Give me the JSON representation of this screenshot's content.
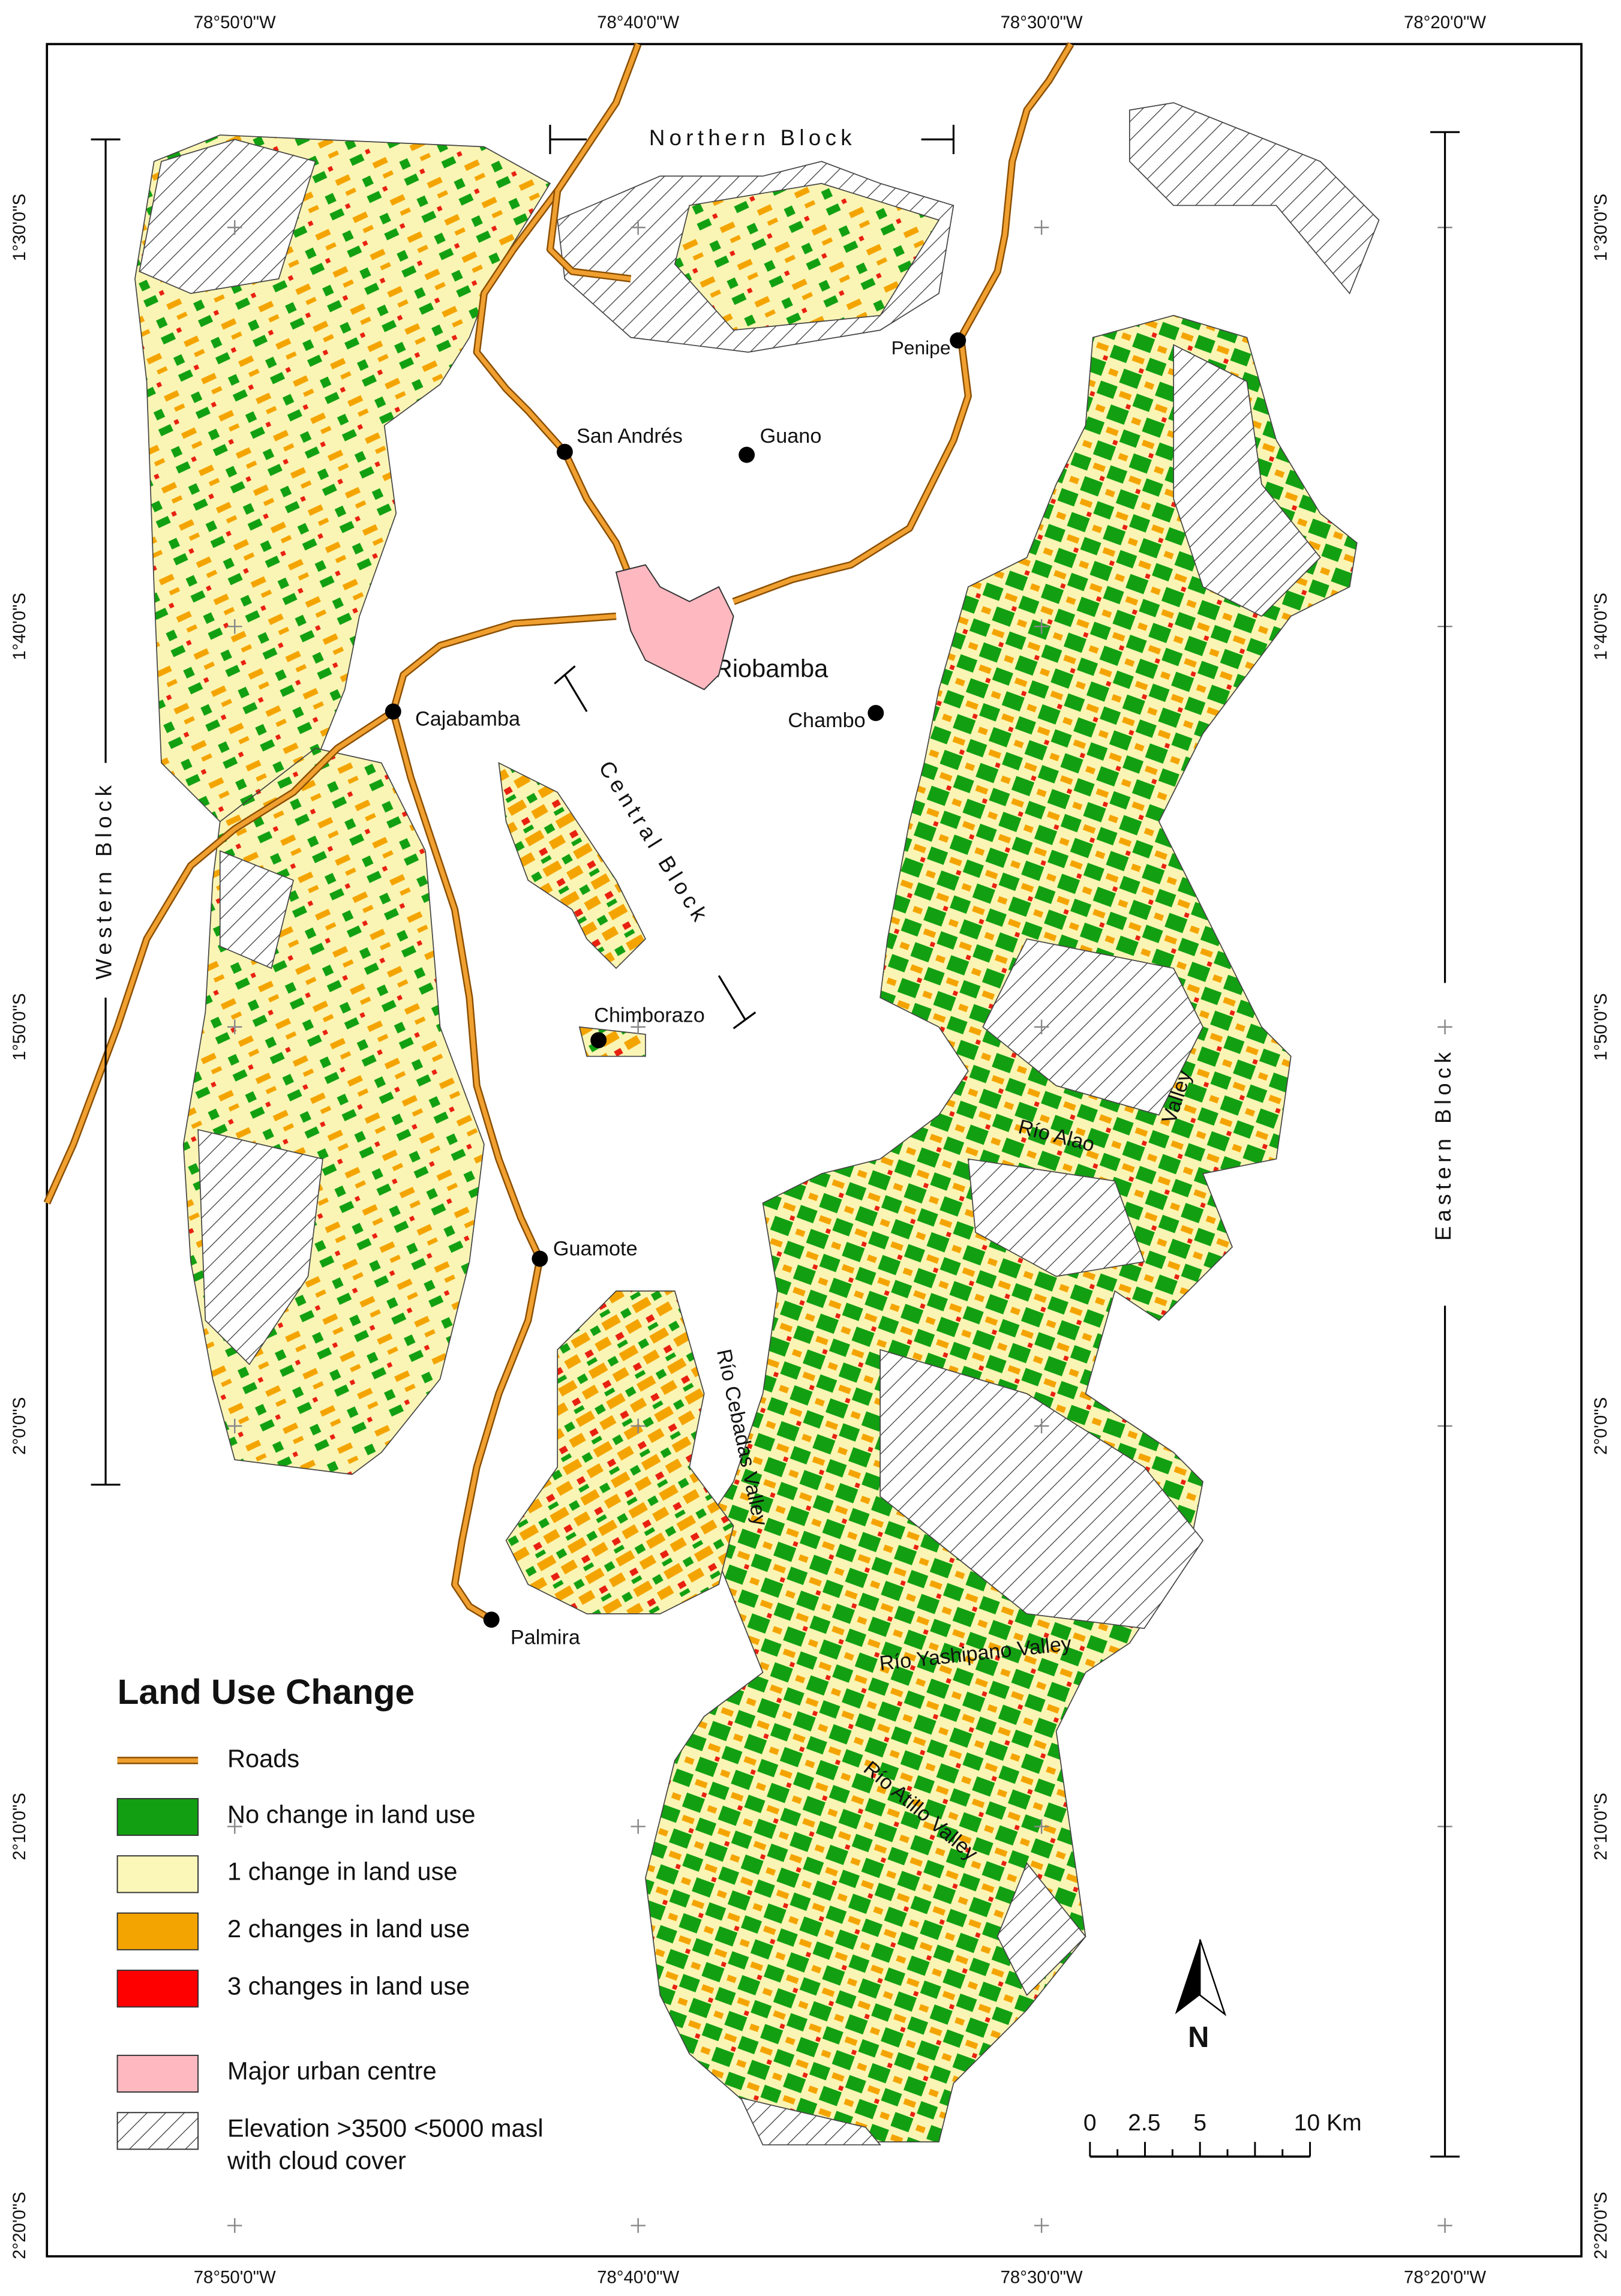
{
  "map": {
    "graticule": {
      "top": [
        "78°50'0\"W",
        "78°40'0\"W",
        "78°30'0\"W",
        "78°20'0\"W"
      ],
      "bottom": [
        "78°50'0\"W",
        "78°40'0\"W",
        "78°30'0\"W",
        "78°20'0\"W"
      ],
      "left": [
        "1°30'0\"S",
        "1°40'0\"S",
        "1°50'0\"S",
        "2°0'0\"S",
        "2°10'0\"S",
        "2°20'0\"S"
      ],
      "right": [
        "1°30'0\"S",
        "1°40'0\"S",
        "1°50'0\"S",
        "2°0'0\"S",
        "2°10'0\"S",
        "2°20'0\"S"
      ]
    },
    "blocks": [
      "Northern Block",
      "Western Block",
      "Central Block",
      "Eastern Block"
    ],
    "places": [
      "Penipe",
      "San Andrés",
      "Guano",
      "Riobamba",
      "Chambo",
      "Cajabamba",
      "Chimborazo",
      "Guamote",
      "Palmira"
    ],
    "valleys": [
      "Río Alao",
      "Valley",
      "Río Cebadas Valley",
      "Río Yashipano Valley",
      "Río Atillo Valley"
    ],
    "legend": {
      "title": "Land Use Change",
      "items": [
        {
          "lines": [
            "Roads"
          ]
        },
        {
          "lines": [
            "No change in land use"
          ]
        },
        {
          "lines": [
            "1 change in land use"
          ]
        },
        {
          "lines": [
            "2 changes in land use"
          ]
        },
        {
          "lines": [
            "3 changes in land use"
          ]
        },
        {
          "lines": [
            "Major urban centre"
          ]
        },
        {
          "lines": [
            "Elevation >3500 <5000 masl",
            "with cloud cover"
          ]
        }
      ]
    },
    "scale": [
      "0",
      "2.5",
      "5",
      "10 Km"
    ],
    "north": "N"
  }
}
